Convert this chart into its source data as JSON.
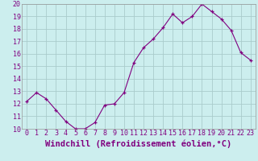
{
  "x": [
    0,
    1,
    2,
    3,
    4,
    5,
    6,
    7,
    8,
    9,
    10,
    11,
    12,
    13,
    14,
    15,
    16,
    17,
    18,
    19,
    20,
    21,
    22,
    23
  ],
  "y": [
    12.2,
    12.9,
    12.4,
    11.5,
    10.6,
    10.0,
    10.0,
    10.5,
    11.9,
    12.0,
    12.9,
    15.3,
    16.5,
    17.2,
    18.1,
    19.2,
    18.5,
    19.0,
    20.0,
    19.4,
    18.8,
    17.9,
    16.1,
    15.5
  ],
  "line_color": "#800080",
  "marker": "+",
  "marker_size": 3,
  "bg_color": "#cceeee",
  "grid_color": "#aacccc",
  "xlabel": "Windchill (Refroidissement éolien,°C)",
  "ylabel": "",
  "ylim": [
    10,
    20
  ],
  "xlim": [
    -0.5,
    23.5
  ],
  "yticks": [
    10,
    11,
    12,
    13,
    14,
    15,
    16,
    17,
    18,
    19,
    20
  ],
  "xticks": [
    0,
    1,
    2,
    3,
    4,
    5,
    6,
    7,
    8,
    9,
    10,
    11,
    12,
    13,
    14,
    15,
    16,
    17,
    18,
    19,
    20,
    21,
    22,
    23
  ],
  "title_color": "#800080",
  "axis_color": "#999999",
  "tick_fontsize": 6,
  "xlabel_fontsize": 7.5
}
